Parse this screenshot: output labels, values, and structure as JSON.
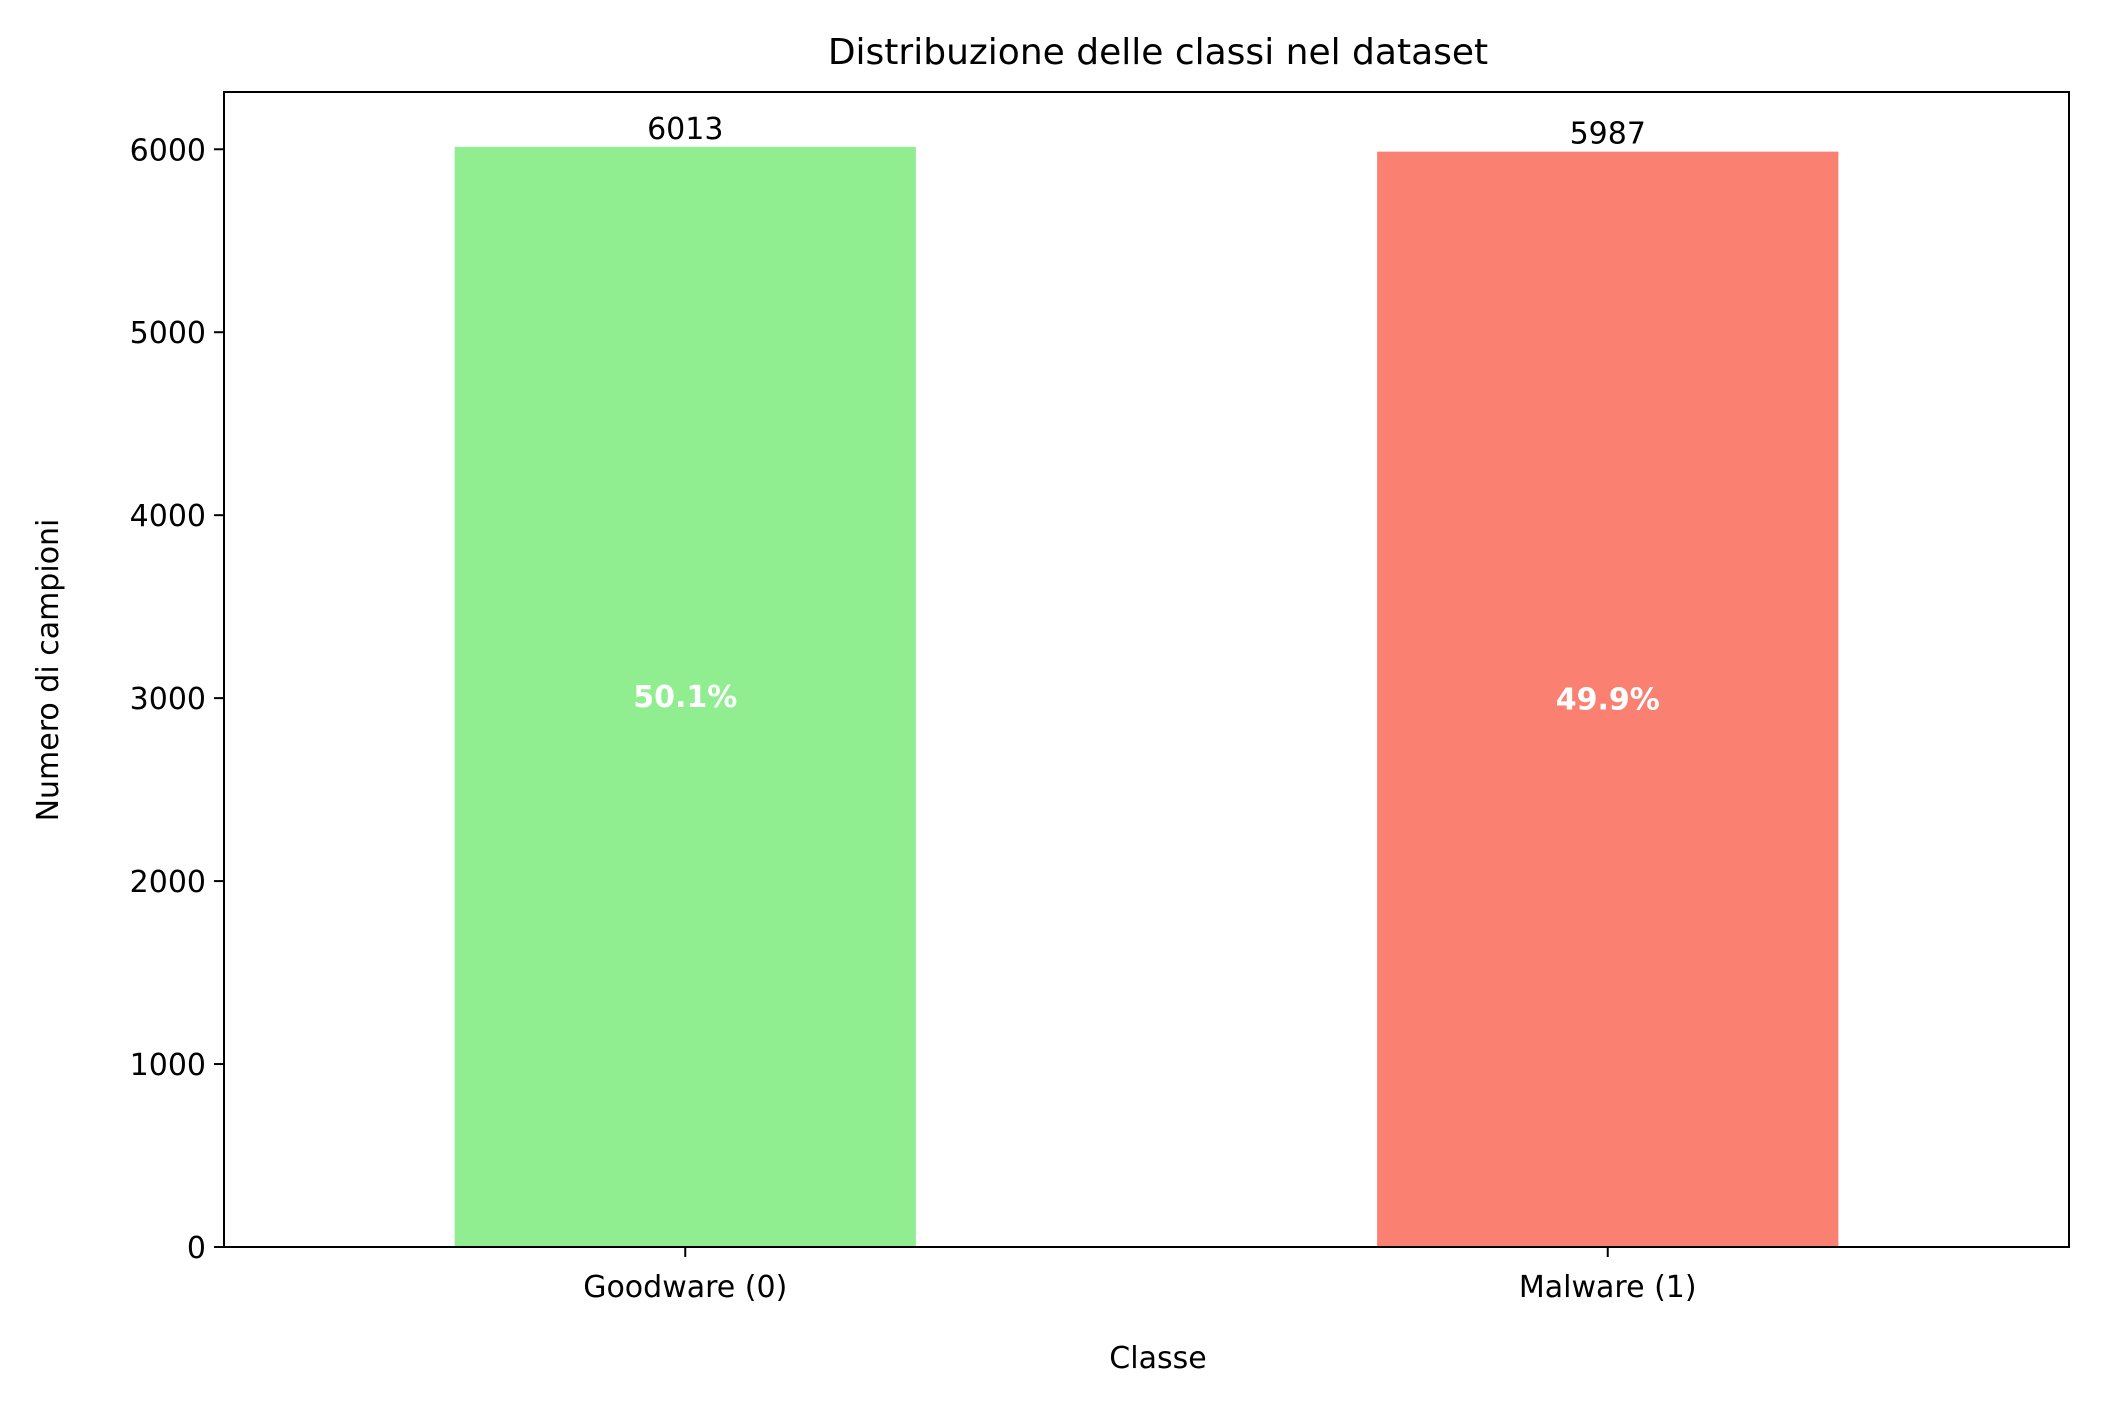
{
  "chart_data": {
    "type": "bar",
    "title": "Distribuzione delle classi nel dataset",
    "xlabel": "Classe",
    "ylabel": "Numero di campioni",
    "categories": [
      "Goodware (0)",
      "Malware (1)"
    ],
    "values": [
      6013,
      5987
    ],
    "value_labels": [
      "6013",
      "5987"
    ],
    "percent_labels": [
      "50.1%",
      "49.9%"
    ],
    "colors": [
      "#90ee90",
      "#fa8072"
    ],
    "ylim": [
      0,
      6313
    ],
    "yticks": [
      0,
      1000,
      2000,
      3000,
      4000,
      5000,
      6000
    ],
    "grid": false,
    "legend": null
  }
}
